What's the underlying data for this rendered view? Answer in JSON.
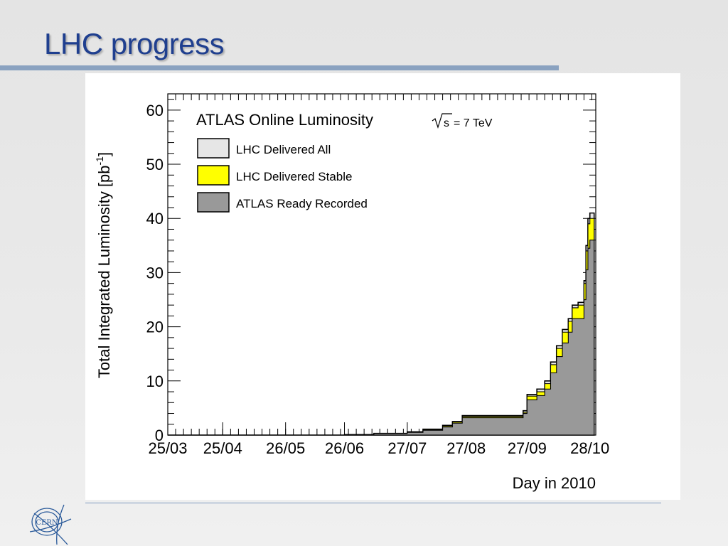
{
  "slide": {
    "title": "LHC progress",
    "logo_text": "CERN"
  },
  "colors": {
    "title": "#1f3f8f",
    "rule": "#8aa2c0",
    "delivered_all": "#e6e6e6",
    "delivered_stable": "#ffff00",
    "recorded": "#999999"
  },
  "chart_data": {
    "type": "area",
    "title": "ATLAS Online Luminosity",
    "energy_label": "= 7 TeV",
    "energy_symbol": "s",
    "xlabel": "Day in 2010",
    "ylabel": "Total Integrated Luminosity [pb",
    "ylabel_sup": "-1",
    "ylabel_close": "]",
    "ylim": [
      0,
      63
    ],
    "xlim": [
      "25/03",
      "31/10"
    ],
    "x_ticks": [
      "25/03",
      "25/04",
      "26/05",
      "26/06",
      "27/07",
      "27/08",
      "27/09",
      "28/10"
    ],
    "y_ticks": [
      "0",
      "10",
      "20",
      "30",
      "40",
      "50",
      "60"
    ],
    "legend_position": "top-left",
    "x": [
      "25/03",
      "26/06",
      "10/07",
      "27/07",
      "05/08",
      "15/08",
      "20/08",
      "25/08",
      "23/09",
      "25/09",
      "27/09",
      "01/10",
      "05/10",
      "08/10",
      "11/10",
      "14/10",
      "17/10",
      "19/10",
      "22/10",
      "25/10",
      "26/10",
      "27/10",
      "28/10"
    ],
    "series": [
      {
        "name": "LHC Delivered All",
        "values": [
          0,
          0.1,
          0.3,
          0.6,
          1.1,
          1.8,
          2.5,
          3.6,
          3.6,
          4.5,
          7.5,
          8.5,
          10,
          13.5,
          16.5,
          19.5,
          21.5,
          24,
          24.5,
          28.5,
          35,
          40,
          41
        ]
      },
      {
        "name": "LHC Delivered Stable",
        "values": [
          0,
          0.1,
          0.3,
          0.6,
          1.0,
          1.7,
          2.4,
          3.4,
          3.4,
          4.2,
          7.2,
          8.0,
          9.5,
          13,
          16,
          19,
          21,
          23.5,
          24,
          28,
          34,
          39,
          40
        ]
      },
      {
        "name": "ATLAS Ready Recorded",
        "values": [
          0,
          0.1,
          0.3,
          0.5,
          0.9,
          1.5,
          2.2,
          3.2,
          3.2,
          4.0,
          6.5,
          7.3,
          8.5,
          11.5,
          14.5,
          17,
          19,
          21.5,
          21.5,
          25,
          30.5,
          34.5,
          36
        ]
      }
    ]
  }
}
